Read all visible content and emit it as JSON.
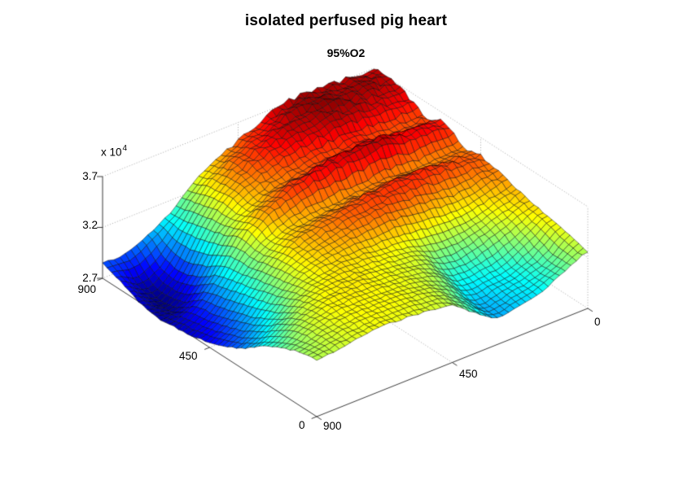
{
  "figure": {
    "title": "isolated perfused pig heart",
    "subtitle": "95%O2"
  },
  "axes": {
    "z_exponent_prefix": "x 10",
    "z_exponent_power": "4",
    "z_tick_labels": [
      "3.7",
      "3.2",
      "2.7"
    ],
    "left_axis_tick_labels": [
      "0",
      "450",
      "900"
    ],
    "right_axis_tick_labels": [
      "900",
      "450",
      "0"
    ]
  },
  "chart_data": {
    "type": "surface",
    "title": "isolated perfused pig heart",
    "subtitle": "95%O2",
    "colormap": "jet",
    "grid_on": true,
    "x_axis_ticks": [
      0,
      450,
      900
    ],
    "y_axis_ticks": [
      0,
      450,
      900
    ],
    "z_tick_values": [
      2.7,
      3.2,
      3.7
    ],
    "axis_tick_values": [
      0,
      450,
      900
    ],
    "z_unit": 10000,
    "z_grid_rows": "y axis from 0 (front corner) to 900 (back-left corner)",
    "z_grid_cols": "x axis from 0 (right corner) to 900 (front corner)",
    "z_grid": [
      [
        3.26,
        3.16,
        3.05,
        3.0,
        2.96,
        3.1,
        3.26,
        3.3,
        3.32,
        3.33,
        3.31,
        3.28,
        3.25
      ],
      [
        3.3,
        3.15,
        3.06,
        3.02,
        2.98,
        3.15,
        3.28,
        3.32,
        3.34,
        3.34,
        3.32,
        3.28,
        3.22
      ],
      [
        3.35,
        3.22,
        3.1,
        3.06,
        3.05,
        3.22,
        3.3,
        3.33,
        3.35,
        3.35,
        3.33,
        3.26,
        3.15
      ],
      [
        3.38,
        3.3,
        3.22,
        3.15,
        3.15,
        3.28,
        3.32,
        3.34,
        3.36,
        3.35,
        3.3,
        3.18,
        3.05
      ],
      [
        3.42,
        3.36,
        3.3,
        3.28,
        3.3,
        3.34,
        3.36,
        3.38,
        3.37,
        3.33,
        3.22,
        3.05,
        2.92
      ],
      [
        3.48,
        3.45,
        3.42,
        3.45,
        3.48,
        3.5,
        3.48,
        3.45,
        3.4,
        3.32,
        3.15,
        2.95,
        2.82
      ],
      [
        3.52,
        3.55,
        3.58,
        3.6,
        3.58,
        3.56,
        3.52,
        3.48,
        3.42,
        3.3,
        3.1,
        2.88,
        2.75
      ],
      [
        3.5,
        3.48,
        3.46,
        3.48,
        3.47,
        3.46,
        3.44,
        3.42,
        3.36,
        3.25,
        3.05,
        2.82,
        2.7
      ],
      [
        3.62,
        3.64,
        3.66,
        3.7,
        3.68,
        3.66,
        3.62,
        3.55,
        3.45,
        3.28,
        3.0,
        2.78,
        2.68
      ],
      [
        3.56,
        3.54,
        3.55,
        3.58,
        3.56,
        3.54,
        3.5,
        3.45,
        3.35,
        3.2,
        2.88,
        2.66,
        2.66
      ],
      [
        3.64,
        3.66,
        3.68,
        3.7,
        3.68,
        3.64,
        3.58,
        3.5,
        3.38,
        3.15,
        2.8,
        2.62,
        2.7
      ],
      [
        3.7,
        3.72,
        3.74,
        3.75,
        3.73,
        3.68,
        3.6,
        3.5,
        3.35,
        3.1,
        2.82,
        2.68,
        2.78
      ],
      [
        3.7,
        3.71,
        3.72,
        3.73,
        3.7,
        3.62,
        3.52,
        3.42,
        3.28,
        3.08,
        2.95,
        2.85,
        2.85
      ]
    ]
  }
}
